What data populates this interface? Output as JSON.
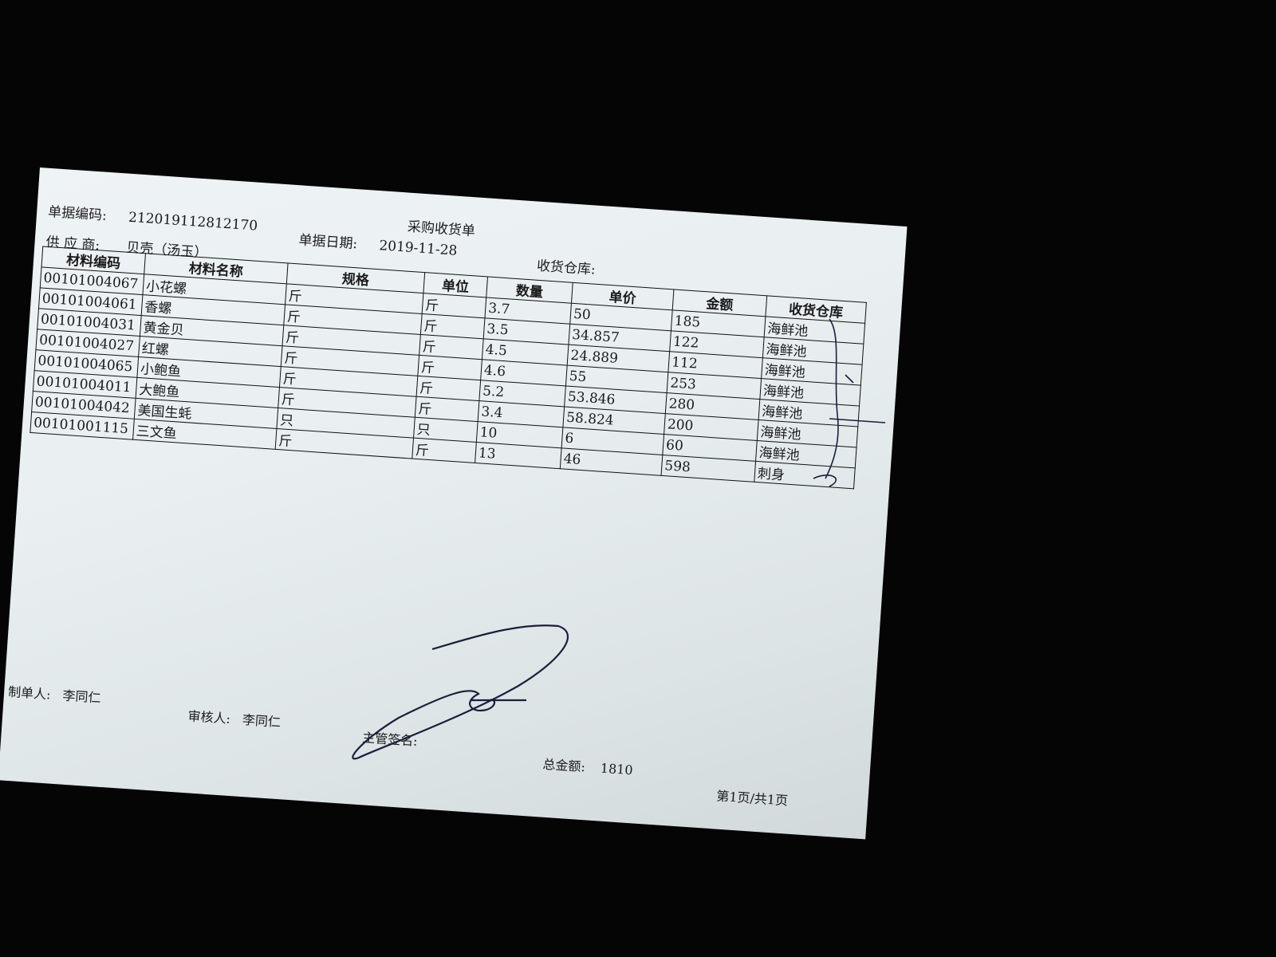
{
  "document": {
    "title": "采购收货单",
    "doc_no_label": "单据编码:",
    "doc_no": "212019112812170",
    "date_label": "单据日期:",
    "date": "2019-11-28",
    "supplier_label": "供 应 商:",
    "supplier": "贝壳（汤玉）",
    "warehouse_label": "收货仓库:",
    "warehouse": ""
  },
  "table": {
    "headers": [
      "材料编码",
      "材料名称",
      "规格",
      "单位",
      "数量",
      "单价",
      "金额",
      "收货仓库"
    ],
    "rows": [
      [
        "00101004067",
        "小花螺",
        "斤",
        "斤",
        "3.7",
        "50",
        "185",
        "海鲜池"
      ],
      [
        "00101004061",
        "香螺",
        "斤",
        "斤",
        "3.5",
        "34.857",
        "122",
        "海鲜池"
      ],
      [
        "00101004031",
        "黄金贝",
        "斤",
        "斤",
        "4.5",
        "24.889",
        "112",
        "海鲜池"
      ],
      [
        "00101004027",
        "红螺",
        "斤",
        "斤",
        "4.6",
        "55",
        "253",
        "海鲜池"
      ],
      [
        "00101004065",
        "小鲍鱼",
        "斤",
        "斤",
        "5.2",
        "53.846",
        "280",
        "海鲜池"
      ],
      [
        "00101004011",
        "大鲍鱼",
        "斤",
        "斤",
        "3.4",
        "58.824",
        "200",
        "海鲜池"
      ],
      [
        "00101004042",
        "美国生蚝",
        "只",
        "只",
        "10",
        "6",
        "60",
        "海鲜池"
      ],
      [
        "00101001115",
        "三文鱼",
        "斤",
        "斤",
        "13",
        "46",
        "598",
        "刺身"
      ]
    ]
  },
  "footer": {
    "maker_label": "制单人:",
    "maker": "李同仁",
    "reviewer_label": "审核人:",
    "reviewer": "李同仁",
    "supervisor_label": "主管签名:",
    "total_label": "总金额:",
    "total": "1810",
    "page": "第1页/共1页"
  },
  "colors": {
    "background": "#050505",
    "paper": "#e9eff1",
    "ink": "#1a1a1a",
    "pen": "#1a1f3a"
  }
}
